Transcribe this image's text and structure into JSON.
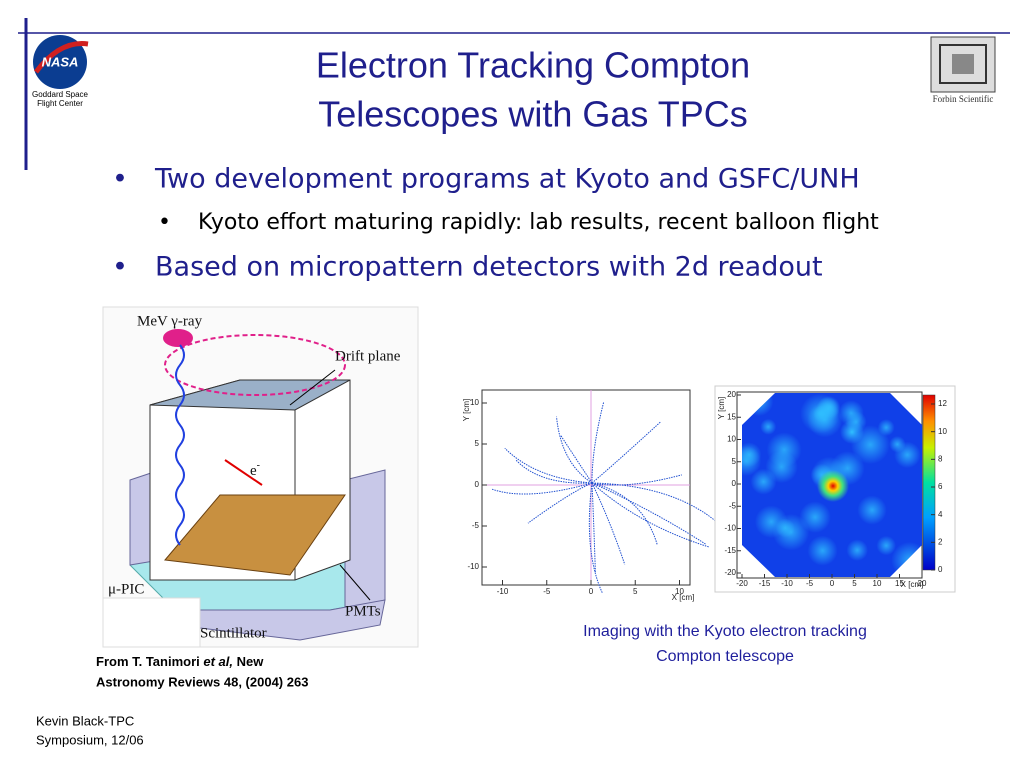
{
  "header": {
    "title_lines": [
      "Electron Tracking Compton",
      "Telescopes with Gas TPCs"
    ],
    "logo_text": "NASA",
    "org_lines": [
      "Goddard Space",
      "Flight Center"
    ],
    "partner": "Forbin Scientific"
  },
  "bullets": [
    {
      "level": 1,
      "text": "Two development programs at Kyoto and GSFC/UNH"
    },
    {
      "level": 2,
      "text": "Kyoto effort maturing rapidly: lab results, recent balloon flight"
    },
    {
      "level": 1,
      "text": "Based on micropattern detectors with 2d readout"
    }
  ],
  "figures": {
    "diagram": {
      "gamma": "MeV γ-ray",
      "drift": "Drift plane",
      "electron": "e",
      "electron_sup": "-",
      "pic": "μ-PIC",
      "scintillator": "Scintillator",
      "pmts": "PMTs"
    },
    "tracks": {
      "x_label": "X [cm]",
      "y_label": "Y [cm]",
      "xticks": [
        -10,
        -5,
        0,
        5,
        10
      ],
      "yticks": [
        10,
        5,
        0,
        -5,
        -10
      ]
    },
    "image": {
      "x_label": "X [cm]",
      "y_label": "Y [cm]",
      "xticks": [
        -20,
        -15,
        -10,
        -5,
        0,
        5,
        10,
        15,
        20
      ],
      "yticks": [
        20,
        15,
        10,
        5,
        0,
        -5,
        -10,
        -15,
        -20
      ],
      "colorbar_ticks": [
        0,
        2,
        4,
        6,
        8,
        10,
        12
      ]
    }
  },
  "captions": {
    "reference_line1": [
      "From T. Tanimori ",
      "et al,",
      " New"
    ],
    "reference_line2": "Astronomy Reviews 48, (2004) 263",
    "imaging_lines": [
      "Imaging with the Kyoto electron tracking",
      "Compton telescope"
    ]
  },
  "footer_lines": [
    "Kevin Black-TPC",
    "Symposium, 12/06"
  ]
}
